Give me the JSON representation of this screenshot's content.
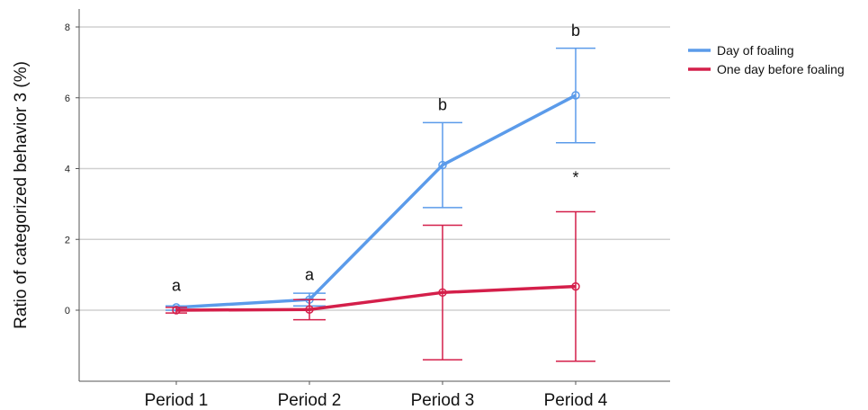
{
  "chart_data": {
    "type": "line",
    "categories": [
      "Period 1",
      "Period 2",
      "Period 3",
      "Period 4"
    ],
    "ylabel": "Ratio of categorized behavior 3 (%)",
    "xlabel": "",
    "ylim": [
      -2,
      8
    ],
    "yticks": [
      0,
      2,
      4,
      6,
      8
    ],
    "grid": true,
    "legend_position": "top-right",
    "series": [
      {
        "name": "Day of foaling",
        "color": "#5b9bea",
        "values": [
          0.08,
          0.3,
          4.1,
          6.07
        ],
        "err_low": [
          0.0,
          0.12,
          2.9,
          4.73
        ],
        "err_high": [
          0.12,
          0.48,
          5.3,
          7.4
        ]
      },
      {
        "name": "One day before foaling",
        "color": "#d41f4a",
        "values": [
          0.0,
          0.02,
          0.5,
          0.67
        ],
        "err_low": [
          -0.08,
          -0.27,
          -1.4,
          -1.44
        ],
        "err_high": [
          0.08,
          0.3,
          2.4,
          2.78
        ]
      }
    ],
    "annotations": [
      {
        "category": "Period 1",
        "text": "a",
        "y": 0.55
      },
      {
        "category": "Period 2",
        "text": "a",
        "y": 0.85
      },
      {
        "category": "Period 3",
        "text": "b",
        "y": 5.65
      },
      {
        "category": "Period 4",
        "text": "b",
        "y": 7.75
      },
      {
        "category": "Period 4",
        "text": "*",
        "y": 3.6
      }
    ]
  }
}
